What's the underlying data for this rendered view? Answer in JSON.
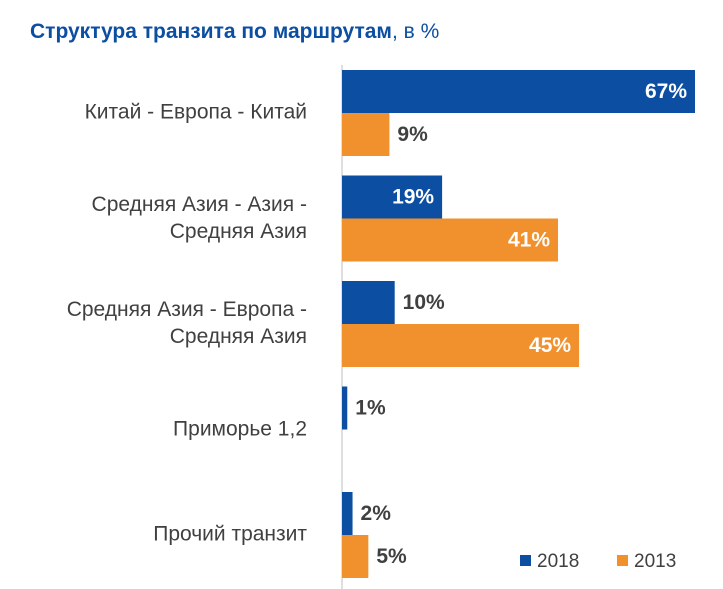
{
  "chart_data": {
    "type": "bar",
    "orientation": "horizontal",
    "title": "Структура транзита по маршрутам",
    "title_unit": ", в %",
    "categories": [
      "Китай - Европа - Китай",
      "Средняя Азия - Азия -\nСредняя Азия",
      "Средняя Азия - Европа -\nСредняя Азия",
      "Приморье 1,2",
      "Прочий транзит"
    ],
    "series": [
      {
        "name": "2018",
        "color": "#0b4ea2",
        "values": [
          67,
          19,
          10,
          1,
          2
        ],
        "value_labels": [
          "67%",
          "19%",
          "10%",
          "1%",
          "2%"
        ]
      },
      {
        "name": "2013",
        "color": "#f0912d",
        "values": [
          9,
          41,
          45,
          null,
          5
        ],
        "value_labels": [
          "9%",
          "41%",
          "45%",
          null,
          "5%"
        ]
      }
    ],
    "xlim": [
      0,
      67
    ],
    "legend": "bottom-right"
  }
}
